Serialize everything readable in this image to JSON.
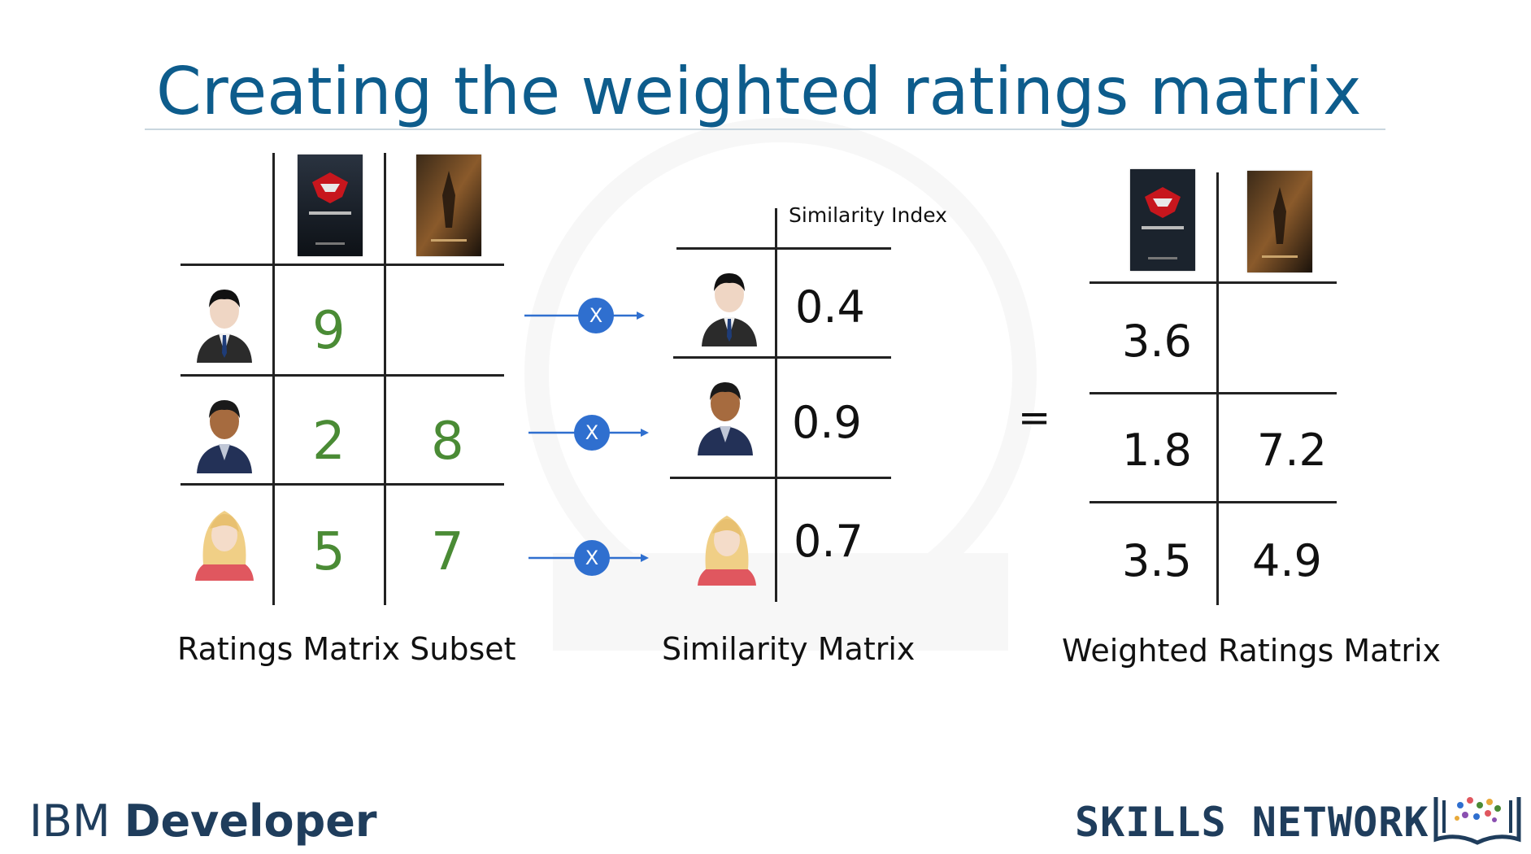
{
  "title": "Creating the weighted ratings matrix",
  "ratings_matrix": {
    "caption": "Ratings Matrix Subset",
    "movies": [
      "batman-v-superman-poster",
      "batman-begins-poster"
    ],
    "rows": [
      {
        "user": "man-in-suit-avatar",
        "values": [
          "9",
          ""
        ]
      },
      {
        "user": "man-dark-skin-avatar",
        "values": [
          "2",
          "8"
        ]
      },
      {
        "user": "woman-blonde-avatar",
        "values": [
          "5",
          "7"
        ]
      }
    ]
  },
  "operator_label": "X",
  "similarity_matrix": {
    "caption": "Similarity Matrix",
    "header": "Similarity Index",
    "values": [
      "0.4",
      "0.9",
      "0.7"
    ]
  },
  "equals_sign": "=",
  "weighted_matrix": {
    "caption": "Weighted Ratings Matrix",
    "rows": [
      [
        "3.6",
        ""
      ],
      [
        "1.8",
        "7.2"
      ],
      [
        "3.5",
        "4.9"
      ]
    ]
  },
  "footer": {
    "ibm_light": "IBM ",
    "ibm_bold": "Developer",
    "skills": "SKILLS NETWORK"
  },
  "colors": {
    "title": "#0d5c8c",
    "rating_green": "#4a8b35",
    "operator_circle": "#2f6fcf",
    "footer_text": "#1f3d5c"
  }
}
